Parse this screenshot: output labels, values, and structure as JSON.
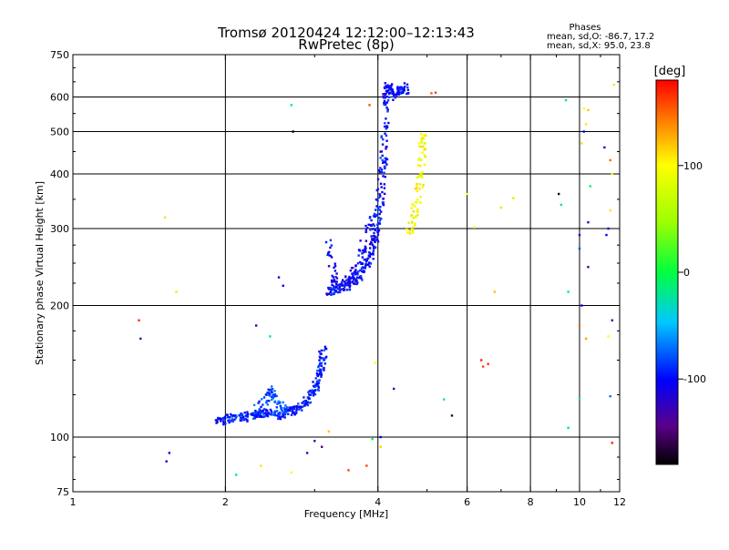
{
  "chart_data": {
    "type": "scatter",
    "title": "Tromsø 20120424 12:12:00–12:13:43",
    "subtitle": "RwPretec (8p)",
    "xlabel": "Frequency [MHz]",
    "ylabel": "Stationary phase Virtual Height [km]",
    "x_scale": "log",
    "y_scale": "log",
    "xlim": [
      1,
      12
    ],
    "ylim": [
      75,
      750
    ],
    "x_ticks": [
      "1",
      "2",
      "4",
      "6",
      "8",
      "10",
      "12"
    ],
    "y_ticks": [
      "75",
      "100",
      "200",
      "300",
      "400",
      "500",
      "600",
      "750"
    ],
    "grid": true,
    "stats": {
      "heading": "Phases",
      "line1": "mean, sd,O:  -86.7, 17.2",
      "line2": "mean, sd,X:   95.0, 23.8"
    },
    "colorbar": {
      "label": "[deg]",
      "ticks": [
        "100",
        "0",
        "-100"
      ],
      "range": [
        -180,
        180
      ]
    },
    "traces": [
      {
        "phase": -95,
        "density": 22,
        "points": [
          [
            1.92,
            108
          ],
          [
            2.0,
            110
          ],
          [
            2.1,
            111
          ],
          [
            2.2,
            111
          ],
          [
            2.3,
            113
          ],
          [
            2.4,
            114
          ],
          [
            2.5,
            112
          ],
          [
            2.6,
            113
          ],
          [
            2.7,
            115
          ],
          [
            2.8,
            117
          ],
          [
            2.9,
            121
          ],
          [
            3.0,
            128
          ],
          [
            3.05,
            135
          ],
          [
            3.1,
            145
          ],
          [
            3.12,
            160
          ]
        ]
      },
      {
        "phase": -80,
        "density": 14,
        "points": [
          [
            2.3,
            115
          ],
          [
            2.4,
            121
          ],
          [
            2.45,
            128
          ],
          [
            2.5,
            122
          ],
          [
            2.6,
            117
          ],
          [
            2.65,
            112
          ]
        ]
      },
      {
        "phase": -100,
        "density": 22,
        "points": [
          [
            3.2,
            215
          ],
          [
            3.3,
            217
          ],
          [
            3.5,
            222
          ],
          [
            3.7,
            235
          ],
          [
            3.8,
            250
          ],
          [
            3.9,
            270
          ],
          [
            3.95,
            290
          ],
          [
            4.0,
            320
          ],
          [
            4.05,
            360
          ],
          [
            4.1,
            420
          ],
          [
            4.12,
            500
          ],
          [
            4.15,
            600
          ],
          [
            4.2,
            640
          ]
        ]
      },
      {
        "phase": -105,
        "density": 14,
        "points": [
          [
            3.2,
            280
          ],
          [
            3.25,
            240
          ],
          [
            3.3,
            222
          ],
          [
            3.4,
            222
          ],
          [
            3.5,
            228
          ],
          [
            3.6,
            240
          ],
          [
            3.7,
            260
          ],
          [
            3.8,
            290
          ],
          [
            3.9,
            320
          ]
        ]
      },
      {
        "phase": -98,
        "density": 14,
        "points": [
          [
            4.2,
            640
          ],
          [
            4.3,
            600
          ],
          [
            4.4,
            620
          ],
          [
            4.5,
            640
          ],
          [
            4.55,
            600
          ]
        ]
      },
      {
        "phase": 95,
        "density": 16,
        "points": [
          [
            4.6,
            290
          ],
          [
            4.7,
            320
          ],
          [
            4.8,
            350
          ],
          [
            4.85,
            400
          ],
          [
            4.9,
            460
          ],
          [
            4.95,
            490
          ]
        ]
      }
    ],
    "scattered_points": [
      [
        2.72,
        500,
        -175
      ],
      [
        2.7,
        575,
        -20
      ],
      [
        3.85,
        575,
        155
      ],
      [
        2.55,
        232,
        -115
      ],
      [
        2.6,
        222,
        -110
      ],
      [
        1.52,
        318,
        110
      ],
      [
        1.6,
        215,
        110
      ],
      [
        1.35,
        185,
        165
      ],
      [
        1.36,
        168,
        -140
      ],
      [
        1.55,
        92,
        -110
      ],
      [
        1.53,
        88,
        -115
      ],
      [
        2.1,
        82,
        -30
      ],
      [
        2.35,
        86,
        110
      ],
      [
        2.7,
        83,
        95
      ],
      [
        2.9,
        92,
        -125
      ],
      [
        3.0,
        98,
        -135
      ],
      [
        3.2,
        103,
        120
      ],
      [
        3.8,
        86,
        160
      ],
      [
        3.9,
        99,
        -10
      ],
      [
        4.05,
        100,
        -100
      ],
      [
        3.95,
        148,
        100
      ],
      [
        4.3,
        129,
        -130
      ],
      [
        4.05,
        95,
        115
      ],
      [
        5.1,
        612,
        150
      ],
      [
        5.2,
        614,
        160
      ],
      [
        5.6,
        112,
        -160
      ],
      [
        5.4,
        122,
        -10
      ],
      [
        6.0,
        360,
        100
      ],
      [
        6.2,
        302,
        100
      ],
      [
        6.4,
        150,
        170
      ],
      [
        6.45,
        145,
        160
      ],
      [
        6.6,
        147,
        165
      ],
      [
        6.8,
        215,
        120
      ],
      [
        7.0,
        335,
        60
      ],
      [
        7.4,
        352,
        70
      ],
      [
        9.1,
        360,
        -170
      ],
      [
        9.2,
        340,
        -20
      ],
      [
        9.4,
        590,
        -30
      ],
      [
        9.5,
        215,
        -10
      ],
      [
        9.5,
        105,
        -20
      ],
      [
        10.0,
        290,
        -100
      ],
      [
        10.0,
        270,
        -80
      ],
      [
        10.1,
        200,
        -100
      ],
      [
        10.0,
        180,
        150
      ],
      [
        10.2,
        500,
        -100
      ],
      [
        10.3,
        520,
        110
      ],
      [
        10.4,
        560,
        120
      ],
      [
        10.2,
        565,
        95
      ],
      [
        10.1,
        470,
        110
      ],
      [
        10.4,
        310,
        -120
      ],
      [
        10.4,
        245,
        -150
      ],
      [
        10.5,
        375,
        -10
      ],
      [
        10.3,
        168,
        130
      ],
      [
        10.0,
        122,
        -20
      ],
      [
        11.2,
        460,
        -100
      ],
      [
        11.5,
        430,
        150
      ],
      [
        11.6,
        400,
        100
      ],
      [
        11.5,
        330,
        110
      ],
      [
        11.4,
        300,
        -110
      ],
      [
        11.3,
        290,
        -100
      ],
      [
        11.6,
        185,
        -130
      ],
      [
        11.5,
        124,
        -70
      ],
      [
        11.6,
        97,
        170
      ],
      [
        11.4,
        170,
        100
      ],
      [
        11.7,
        640,
        110
      ],
      [
        2.3,
        180,
        -120
      ],
      [
        2.45,
        170,
        -20
      ],
      [
        3.1,
        95,
        -150
      ],
      [
        3.5,
        84,
        160
      ]
    ]
  }
}
